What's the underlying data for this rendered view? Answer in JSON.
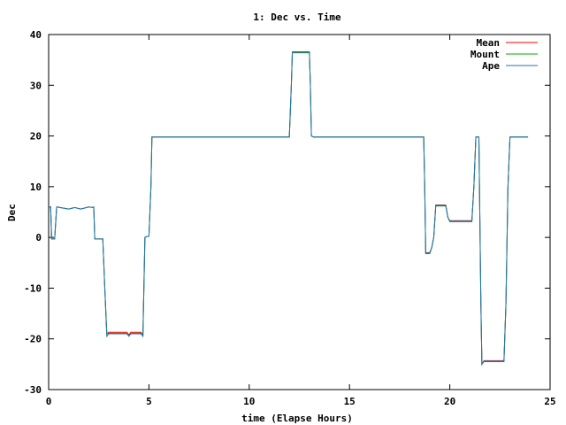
{
  "chart_data": {
    "type": "line",
    "title": "1: Dec vs. Time",
    "xlabel": "time (Elapse Hours)",
    "ylabel": "Dec",
    "xlim": [
      0,
      25
    ],
    "ylim": [
      -30,
      40
    ],
    "xticks": [
      0,
      5,
      10,
      15,
      20,
      25
    ],
    "yticks": [
      -30,
      -20,
      -10,
      0,
      10,
      20,
      30,
      40
    ],
    "grid": false,
    "legend_position": "top-right",
    "series": [
      {
        "name": "Mean",
        "color": "#ff0000",
        "x": [
          0,
          0.1,
          0.15,
          0.3,
          0.4,
          1.0,
          1.3,
          1.6,
          2.0,
          2.2,
          2.25,
          2.3,
          2.7,
          2.8,
          2.9,
          3.0,
          3.1,
          3.2,
          3.9,
          4.0,
          4.1,
          4.2,
          4.6,
          4.7,
          4.8,
          4.9,
          5.0,
          5.1,
          5.15,
          5.2,
          12.0,
          12.1,
          12.15,
          12.2,
          13.0,
          13.05,
          13.1,
          13.2,
          18.6,
          18.7,
          18.75,
          18.8,
          19.0,
          19.1,
          19.2,
          19.3,
          19.7,
          19.8,
          19.9,
          20.0,
          21.0,
          21.1,
          21.2,
          21.3,
          21.45,
          21.55,
          21.6,
          21.7,
          21.8,
          21.9,
          22.7,
          22.8,
          22.9,
          23.0,
          23.9
        ],
        "y": [
          6,
          6,
          -0.3,
          -0.3,
          6,
          5.6,
          5.9,
          5.6,
          6,
          5.9,
          6,
          -0.3,
          -0.3,
          -10,
          -19,
          -18.7,
          -18.7,
          -18.7,
          -18.7,
          -19.2,
          -18.7,
          -18.7,
          -18.7,
          -19.2,
          0,
          0.2,
          0.2,
          10,
          19.8,
          19.8,
          19.8,
          30,
          36.6,
          36.6,
          36.6,
          30,
          20,
          19.8,
          19.8,
          19.8,
          10,
          -3,
          -3,
          -2,
          0,
          6.4,
          6.4,
          6.4,
          4,
          3.3,
          3.3,
          3.3,
          10,
          19.8,
          19.8,
          -13,
          -25,
          -24.3,
          -24.3,
          -24.3,
          -24.3,
          -13,
          10,
          19.8,
          19.8
        ]
      },
      {
        "name": "Mount",
        "color": "#00aa00",
        "x": [
          0,
          0.1,
          0.15,
          0.3,
          0.4,
          1.0,
          1.3,
          1.6,
          2.0,
          2.2,
          2.25,
          2.3,
          2.7,
          2.8,
          2.9,
          3.0,
          3.1,
          3.2,
          3.9,
          4.0,
          4.1,
          4.2,
          4.6,
          4.7,
          4.8,
          4.9,
          5.0,
          5.1,
          5.15,
          5.2,
          12.0,
          12.1,
          12.15,
          12.2,
          13.0,
          13.05,
          13.1,
          13.2,
          18.6,
          18.7,
          18.75,
          18.8,
          19.0,
          19.1,
          19.2,
          19.3,
          19.7,
          19.8,
          19.9,
          20.0,
          21.0,
          21.1,
          21.2,
          21.3,
          21.45,
          21.55,
          21.6,
          21.7,
          21.8,
          21.9,
          22.7,
          22.8,
          22.9,
          23.0,
          23.9
        ],
        "y": [
          6,
          6,
          -0.3,
          -0.3,
          6,
          5.6,
          5.9,
          5.6,
          6,
          5.9,
          6,
          -0.3,
          -0.3,
          -10,
          -19,
          -18.9,
          -18.9,
          -18.9,
          -18.9,
          -19.4,
          -18.9,
          -18.9,
          -18.9,
          -19.4,
          0,
          0.2,
          0.2,
          10,
          19.8,
          19.8,
          19.8,
          30,
          36.4,
          36.4,
          36.4,
          30,
          20,
          19.8,
          19.8,
          19.8,
          10,
          -3.2,
          -3.2,
          -2,
          0,
          6.2,
          6.2,
          6.2,
          4,
          3.1,
          3.1,
          3.1,
          10,
          19.8,
          19.8,
          -13,
          -25,
          -24.5,
          -24.5,
          -24.5,
          -24.5,
          -13,
          10,
          19.8,
          19.8
        ]
      },
      {
        "name": "Ape",
        "color": "#1f77b4",
        "x": [
          0,
          0.1,
          0.15,
          0.3,
          0.4,
          1.0,
          1.3,
          1.6,
          2.0,
          2.2,
          2.25,
          2.3,
          2.7,
          2.8,
          2.9,
          3.0,
          3.1,
          3.2,
          3.9,
          4.0,
          4.1,
          4.2,
          4.6,
          4.7,
          4.8,
          4.9,
          5.0,
          5.1,
          5.15,
          5.2,
          12.0,
          12.1,
          12.15,
          12.2,
          13.0,
          13.05,
          13.1,
          13.2,
          18.6,
          18.7,
          18.75,
          18.8,
          19.0,
          19.1,
          19.2,
          19.3,
          19.7,
          19.8,
          19.9,
          20.0,
          21.0,
          21.1,
          21.2,
          21.3,
          21.45,
          21.55,
          21.6,
          21.7,
          21.8,
          21.9,
          22.7,
          22.8,
          22.9,
          23.0,
          23.9
        ],
        "y": [
          6,
          6,
          -0.3,
          -0.3,
          6,
          5.6,
          5.9,
          5.6,
          6,
          5.9,
          6,
          -0.3,
          -0.3,
          -10,
          -19.5,
          -19.0,
          -19.0,
          -19.0,
          -19.0,
          -19.5,
          -19.0,
          -19.0,
          -19.0,
          -19.5,
          0,
          0.2,
          0.2,
          10,
          19.8,
          19.8,
          19.8,
          30,
          36.5,
          36.5,
          36.5,
          30,
          20,
          19.8,
          19.8,
          19.8,
          10,
          -3.1,
          -3.1,
          -2,
          0,
          6.3,
          6.3,
          6.3,
          4,
          3.2,
          3.2,
          3.2,
          10,
          19.8,
          19.8,
          -13,
          -25,
          -24.4,
          -24.4,
          -24.4,
          -24.4,
          -13,
          10,
          19.8,
          19.8
        ]
      }
    ]
  }
}
